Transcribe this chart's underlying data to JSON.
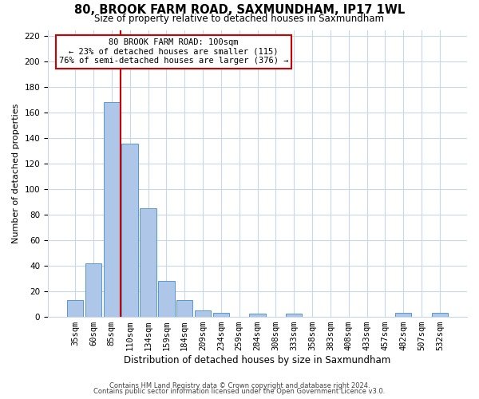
{
  "title": "80, BROOK FARM ROAD, SAXMUNDHAM, IP17 1WL",
  "subtitle": "Size of property relative to detached houses in Saxmundham",
  "xlabel": "Distribution of detached houses by size in Saxmundham",
  "ylabel": "Number of detached properties",
  "bar_labels": [
    "35sqm",
    "60sqm",
    "85sqm",
    "110sqm",
    "134sqm",
    "159sqm",
    "184sqm",
    "209sqm",
    "234sqm",
    "259sqm",
    "284sqm",
    "308sqm",
    "333sqm",
    "358sqm",
    "383sqm",
    "408sqm",
    "433sqm",
    "457sqm",
    "482sqm",
    "507sqm",
    "532sqm"
  ],
  "bar_values": [
    13,
    42,
    168,
    136,
    85,
    28,
    13,
    5,
    3,
    0,
    2,
    0,
    2,
    0,
    0,
    0,
    0,
    0,
    3,
    0,
    3
  ],
  "bar_color": "#aec6e8",
  "bar_edge_color": "#5599cc",
  "vline_color": "#cc0000",
  "vline_x_index": 2.5,
  "ylim": [
    0,
    225
  ],
  "yticks": [
    0,
    20,
    40,
    60,
    80,
    100,
    120,
    140,
    160,
    180,
    200,
    220
  ],
  "annotation_title": "80 BROOK FARM ROAD: 100sqm",
  "annotation_line1": "← 23% of detached houses are smaller (115)",
  "annotation_line2": "76% of semi-detached houses are larger (376) →",
  "annotation_box_color": "#ffffff",
  "annotation_box_edge": "#cc0000",
  "footer1": "Contains HM Land Registry data © Crown copyright and database right 2024.",
  "footer2": "Contains public sector information licensed under the Open Government Licence v3.0.",
  "bg_color": "#ffffff",
  "grid_color": "#c8d8e8",
  "title_fontsize": 10.5,
  "subtitle_fontsize": 8.5,
  "xlabel_fontsize": 8.5,
  "ylabel_fontsize": 8,
  "tick_fontsize": 7.5,
  "annot_fontsize": 7.5,
  "footer_fontsize": 6
}
